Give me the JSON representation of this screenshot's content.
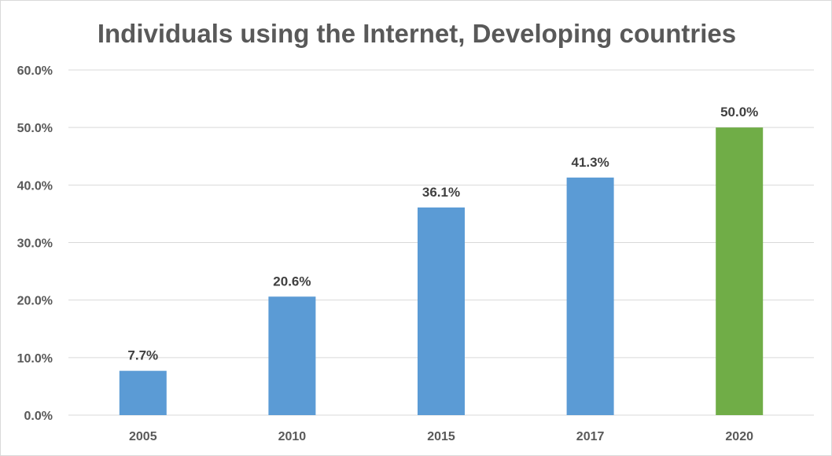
{
  "chart_data": {
    "type": "bar",
    "title": "Individuals using the Internet, Developing countries",
    "xlabel": "",
    "ylabel": "",
    "categories": [
      "2005",
      "2010",
      "2015",
      "2017",
      "2020"
    ],
    "values": [
      7.7,
      20.6,
      36.1,
      41.3,
      50.0
    ],
    "data_labels": [
      "7.7%",
      "20.6%",
      "36.1%",
      "41.3%",
      "50.0%"
    ],
    "ylim": [
      0,
      60
    ],
    "yticks": [
      0,
      10,
      20,
      30,
      40,
      50,
      60
    ],
    "ytick_labels": [
      "0.0%",
      "10.0%",
      "20.0%",
      "30.0%",
      "40.0%",
      "50.0%",
      "60.0%"
    ],
    "grid": true,
    "legend": "none",
    "colors": {
      "default_bar": "#5b9bd5",
      "highlight_bar": "#70ad47",
      "gridline": "#d9d9d9",
      "text": "#595959"
    },
    "highlight_index": 4
  }
}
